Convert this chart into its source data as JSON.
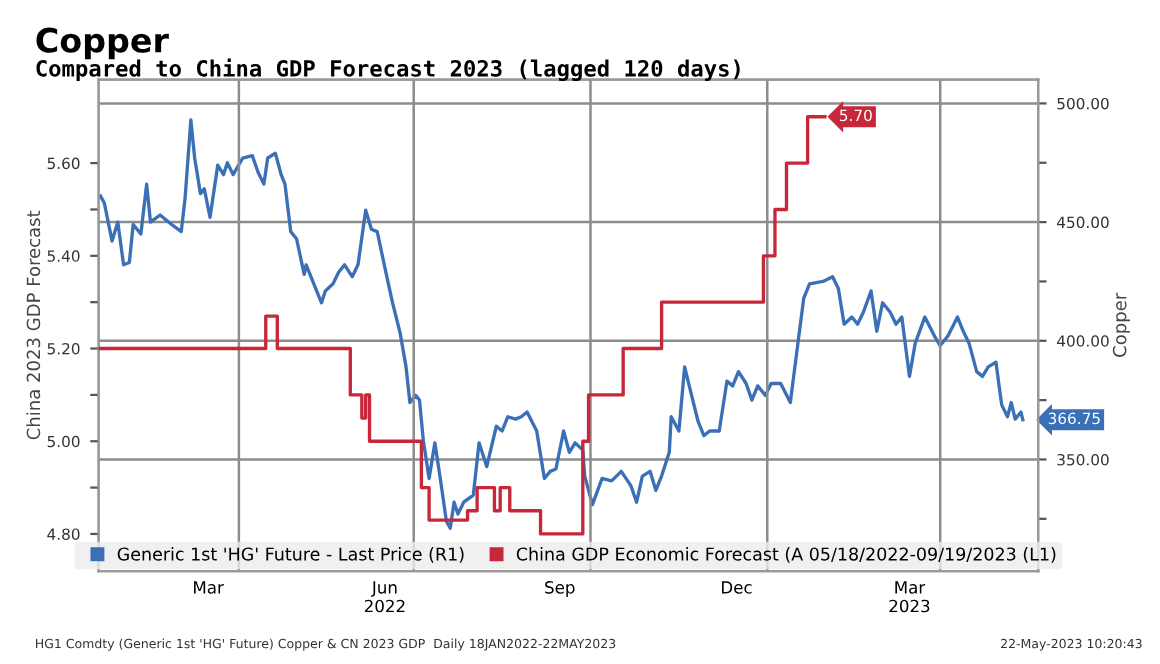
{
  "chart_data": {
    "type": "line",
    "title": "Copper",
    "subtitle": "Compared to China GDP Forecast 2023 (lagged 120 days)",
    "ylabel": "China 2023 GDP Forecast",
    "y2label": "Copper",
    "xlim": [
      "2022-01-18",
      "2023-05-22"
    ],
    "xticks": [
      {
        "value": "2022-03-16",
        "label": "Mar"
      },
      {
        "value": "2022-06-16",
        "label": "Jun\n2022"
      },
      {
        "value": "2022-09-15",
        "label": "Sep"
      },
      {
        "value": "2022-12-16",
        "label": "Dec"
      },
      {
        "value": "2023-03-16",
        "label": "Mar\n2023"
      }
    ],
    "ylim": [
      4.72,
      5.78
    ],
    "yticks": [
      {
        "value": 4.8,
        "label": "4.80"
      },
      {
        "value": 4.9,
        "label": null
      },
      {
        "value": 5.0,
        "label": "5.00"
      },
      {
        "value": 5.1,
        "label": null
      },
      {
        "value": 5.2,
        "label": "5.20"
      },
      {
        "value": 5.3,
        "label": null
      },
      {
        "value": 5.4,
        "label": "5.40"
      },
      {
        "value": 5.5,
        "label": null
      },
      {
        "value": 5.6,
        "label": "5.60"
      }
    ],
    "y2lim": [
      303,
      510
    ],
    "y2ticks": [
      {
        "value": 325,
        "label": null
      },
      {
        "value": 350,
        "label": "350.00"
      },
      {
        "value": 375,
        "label": null
      },
      {
        "value": 400,
        "label": "400.00"
      },
      {
        "value": 425,
        "label": null
      },
      {
        "value": 450,
        "label": "450.00"
      },
      {
        "value": 475,
        "label": null
      },
      {
        "value": 500,
        "label": "500.00"
      }
    ],
    "ref_lines": [
      {
        "axis": "x",
        "value": "2022-04-01",
        "color": "#8c8c8c"
      },
      {
        "axis": "x",
        "value": "2022-07-01",
        "color": "#8c8c8c"
      },
      {
        "axis": "x",
        "value": "2022-10-01",
        "color": "#8c8c8c"
      },
      {
        "axis": "x",
        "value": "2023-01-01",
        "color": "#8c8c8c"
      },
      {
        "axis": "x",
        "value": "2023-04-01",
        "color": "#8c8c8c"
      },
      {
        "axis": "y2",
        "value": 350,
        "color": "#8c8c8c"
      },
      {
        "axis": "y2",
        "value": 400,
        "color": "#8c8c8c"
      },
      {
        "axis": "y2",
        "value": 450,
        "color": "#8c8c8c"
      },
      {
        "axis": "y2",
        "value": 500,
        "color": "#8c8c8c"
      }
    ],
    "legend": "bottom",
    "series": [
      {
        "name": "Generic 1st 'HG' Future - Last Price (R1)",
        "axis": "y2",
        "color": "#3b6fb6",
        "x": [
          "2022-01-19",
          "2022-01-21",
          "2022-01-25",
          "2022-01-28",
          "2022-01-31",
          "2022-02-03",
          "2022-02-05",
          "2022-02-09",
          "2022-02-12",
          "2022-02-14",
          "2022-02-19",
          "2022-02-25",
          "2022-03-02",
          "2022-03-04",
          "2022-03-07",
          "2022-03-09",
          "2022-03-12",
          "2022-03-14",
          "2022-03-17",
          "2022-03-21",
          "2022-03-24",
          "2022-03-26",
          "2022-03-29",
          "2022-04-03",
          "2022-04-08",
          "2022-04-11",
          "2022-04-14",
          "2022-04-16",
          "2022-04-20",
          "2022-04-23",
          "2022-04-25",
          "2022-04-28",
          "2022-05-01",
          "2022-05-05",
          "2022-05-06",
          "2022-05-10",
          "2022-05-14",
          "2022-05-16",
          "2022-05-20",
          "2022-05-23",
          "2022-05-26",
          "2022-05-30",
          "2022-06-02",
          "2022-06-06",
          "2022-06-09",
          "2022-06-12",
          "2022-06-17",
          "2022-06-20",
          "2022-06-24",
          "2022-06-27",
          "2022-06-29",
          "2022-07-02",
          "2022-07-04",
          "2022-07-06",
          "2022-07-09",
          "2022-07-12",
          "2022-07-15",
          "2022-07-18",
          "2022-07-20",
          "2022-07-22",
          "2022-07-24",
          "2022-07-27",
          "2022-08-01",
          "2022-08-04",
          "2022-08-08",
          "2022-08-13",
          "2022-08-16",
          "2022-08-19",
          "2022-08-23",
          "2022-08-26",
          "2022-08-29",
          "2022-09-03",
          "2022-09-07",
          "2022-09-10",
          "2022-09-13",
          "2022-09-17",
          "2022-09-20",
          "2022-09-23",
          "2022-09-27",
          "2022-09-28",
          "2022-10-02",
          "2022-10-07",
          "2022-10-12",
          "2022-10-17",
          "2022-10-22",
          "2022-10-25",
          "2022-10-28",
          "2022-11-01",
          "2022-11-04",
          "2022-11-07",
          "2022-11-11",
          "2022-11-12",
          "2022-11-16",
          "2022-11-19",
          "2022-11-22",
          "2022-11-26",
          "2022-11-29",
          "2022-12-02",
          "2022-12-07",
          "2022-12-11",
          "2022-12-14",
          "2022-12-17",
          "2022-12-21",
          "2022-12-24",
          "2022-12-27",
          "2022-12-31",
          "2023-01-03",
          "2023-01-08",
          "2023-01-13",
          "2023-01-16",
          "2023-01-20",
          "2023-01-23",
          "2023-01-30",
          "2023-02-04",
          "2023-02-07",
          "2023-02-10",
          "2023-02-14",
          "2023-02-17",
          "2023-02-20",
          "2023-02-24",
          "2023-02-27",
          "2023-03-02",
          "2023-03-06",
          "2023-03-09",
          "2023-03-12",
          "2023-03-16",
          "2023-03-19",
          "2023-03-24",
          "2023-03-29",
          "2023-04-01",
          "2023-04-05",
          "2023-04-10",
          "2023-04-13",
          "2023-04-16",
          "2023-04-20",
          "2023-04-23",
          "2023-04-26",
          "2023-04-30",
          "2023-05-03",
          "2023-05-06",
          "2023-05-08",
          "2023-05-10",
          "2023-05-13",
          "2023-05-14"
        ],
        "values": [
          461,
          458,
          442,
          450,
          432,
          433,
          449,
          445,
          466,
          450,
          453,
          449,
          446,
          460,
          493,
          477,
          462,
          464,
          452,
          474,
          470,
          475,
          470,
          477,
          478,
          471,
          466,
          477,
          479,
          470,
          466,
          446,
          443,
          428,
          432,
          424,
          416,
          421,
          424,
          429,
          432,
          427,
          432,
          455,
          447,
          446,
          427,
          416,
          403,
          389,
          374,
          377,
          375,
          358,
          342,
          357,
          341,
          324,
          321,
          332,
          327,
          332,
          335,
          357,
          347,
          364,
          362,
          368,
          367,
          368,
          370,
          362,
          342,
          345,
          346,
          362,
          353,
          357,
          354,
          343,
          331,
          342,
          341,
          345,
          339,
          332,
          343,
          345,
          337,
          343,
          353,
          368,
          362,
          389,
          379,
          366,
          360,
          362,
          362,
          383,
          381,
          387,
          382,
          375,
          381,
          377,
          382,
          382,
          374,
          393,
          418,
          424,
          425,
          427,
          422,
          407,
          410,
          407,
          412,
          421,
          404,
          416,
          412,
          407,
          410,
          385,
          399,
          410,
          402,
          398,
          402,
          410,
          404,
          399,
          387,
          385,
          389,
          391,
          373,
          368,
          374,
          367,
          370,
          366.75
        ],
        "value_labels": [
          null,
          null,
          null,
          null,
          null,
          null,
          null,
          null,
          null,
          null,
          null,
          null,
          null,
          null,
          null,
          null,
          null,
          null,
          null,
          null,
          null,
          null,
          null,
          null,
          null,
          null,
          null,
          null,
          null,
          null,
          null,
          null,
          null,
          null,
          null,
          null,
          null,
          null,
          null,
          null,
          null,
          null,
          null,
          null,
          null,
          null,
          null,
          null,
          null,
          null,
          null,
          null,
          null,
          null,
          null,
          null,
          null,
          null,
          null,
          null,
          null,
          null,
          null,
          null,
          null,
          null,
          null,
          null,
          null,
          null,
          null,
          null,
          null,
          null,
          null,
          null,
          null,
          null,
          null,
          null,
          null,
          null,
          null,
          null,
          null,
          null,
          null,
          null,
          null,
          null,
          null,
          null,
          null,
          null,
          null,
          null,
          null,
          null,
          null,
          null,
          null,
          null,
          null,
          null,
          null,
          null,
          null,
          null,
          null,
          null,
          null,
          null,
          null,
          null,
          null,
          null,
          null,
          null,
          null,
          null,
          null,
          null,
          null,
          null,
          null,
          null,
          null,
          null,
          null,
          null,
          null,
          null,
          null,
          null,
          null,
          null,
          null,
          null,
          null,
          null,
          null,
          null,
          null,
          "366.75"
        ]
      },
      {
        "name": "China GDP Economic Forecast (A 05/18/2022-09/19/2023 (L1)",
        "type": "step",
        "axis": "y",
        "color": "#c62839",
        "x": [
          "2022-01-18",
          "2022-04-15",
          "2022-04-21",
          "2022-05-29",
          "2022-06-04",
          "2022-06-06",
          "2022-06-08",
          "2022-07-05",
          "2022-07-09",
          "2022-07-29",
          "2022-08-03",
          "2022-08-12",
          "2022-08-15",
          "2022-08-20",
          "2022-09-05",
          "2022-09-27",
          "2022-09-30",
          "2022-10-18",
          "2022-11-07",
          "2022-12-30",
          "2023-01-05",
          "2023-01-11",
          "2023-01-22",
          "2023-01-31"
        ],
        "values": [
          5.2,
          5.27,
          5.2,
          5.1,
          5.05,
          5.1,
          5.0,
          4.9,
          4.83,
          4.85,
          4.9,
          4.85,
          4.9,
          4.85,
          4.8,
          5.0,
          5.1,
          5.2,
          5.3,
          5.4,
          5.5,
          5.6,
          5.7,
          5.7
        ],
        "value_labels": [
          null,
          null,
          null,
          null,
          null,
          null,
          null,
          null,
          null,
          null,
          null,
          null,
          null,
          null,
          null,
          null,
          null,
          null,
          null,
          null,
          null,
          null,
          null,
          "5.70"
        ]
      }
    ],
    "annotations": [
      "HG1 Comdty (Generic 1st 'HG' Future) Copper & CN 2023 GDP  Daily 18JAN2022-22MAY2023",
      "22-May-2023 10:20:43"
    ]
  }
}
